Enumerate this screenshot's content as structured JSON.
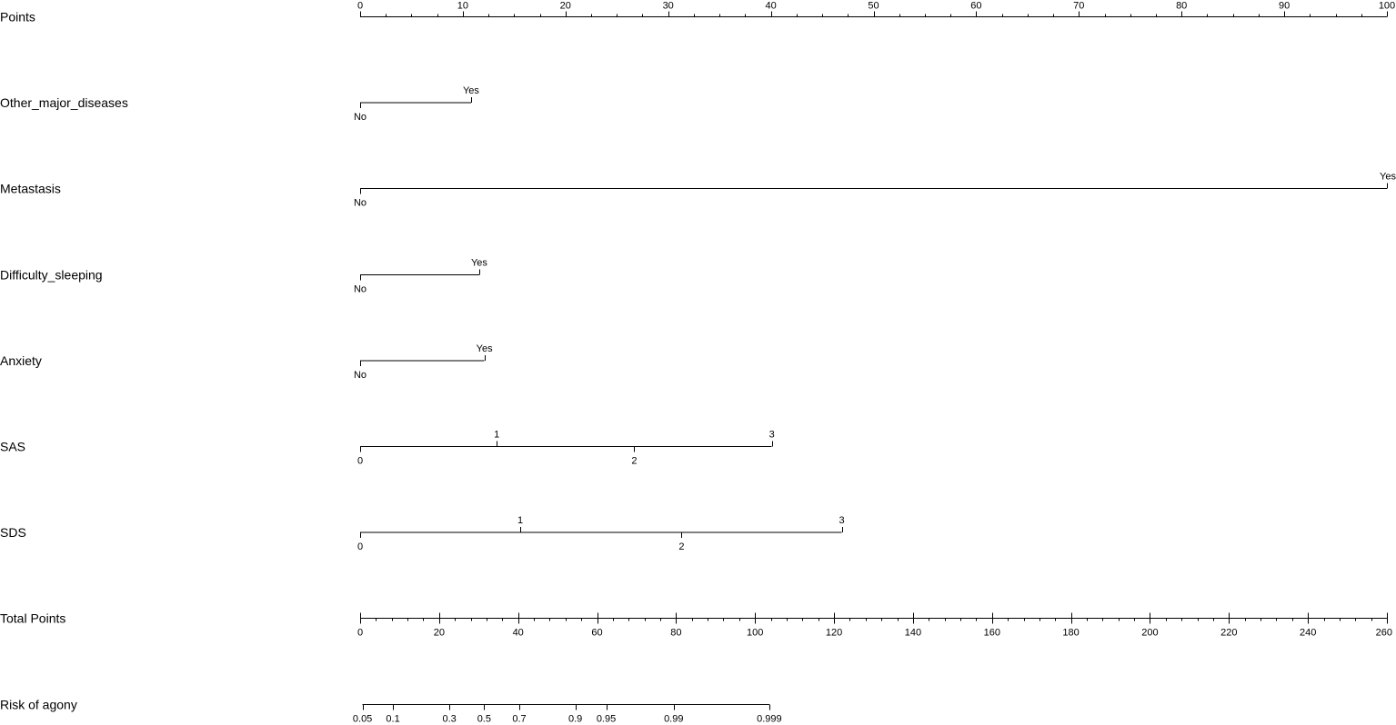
{
  "chart_data": {
    "type": "nomogram",
    "points_scale": {
      "label": "Points",
      "min": 0,
      "max": 100,
      "major_ticks": [
        0,
        10,
        20,
        30,
        40,
        50,
        60,
        70,
        80,
        90,
        100
      ],
      "minor_step": 2.5
    },
    "variables": [
      {
        "name": "Other_major_diseases",
        "levels": [
          {
            "label": "No",
            "points": 0,
            "label_pos": "below"
          },
          {
            "label": "Yes",
            "points": 10.8,
            "label_pos": "above"
          }
        ]
      },
      {
        "name": "Metastasis",
        "levels": [
          {
            "label": "No",
            "points": 0,
            "label_pos": "below"
          },
          {
            "label": "Yes",
            "points": 100,
            "label_pos": "above"
          }
        ]
      },
      {
        "name": "Difficulty_sleeping",
        "levels": [
          {
            "label": "No",
            "points": 0,
            "label_pos": "below"
          },
          {
            "label": "Yes",
            "points": 11.6,
            "label_pos": "above"
          }
        ]
      },
      {
        "name": "Anxiety",
        "levels": [
          {
            "label": "No",
            "points": 0,
            "label_pos": "below"
          },
          {
            "label": "Yes",
            "points": 12.1,
            "label_pos": "above"
          }
        ]
      },
      {
        "name": "SAS",
        "levels": [
          {
            "label": "0",
            "points": 0,
            "label_pos": "below"
          },
          {
            "label": "1",
            "points": 13.3,
            "label_pos": "above"
          },
          {
            "label": "2",
            "points": 26.7,
            "label_pos": "below"
          },
          {
            "label": "3",
            "points": 40.1,
            "label_pos": "above"
          }
        ]
      },
      {
        "name": "SDS",
        "levels": [
          {
            "label": "0",
            "points": 0,
            "label_pos": "below"
          },
          {
            "label": "1",
            "points": 15.6,
            "label_pos": "above"
          },
          {
            "label": "2",
            "points": 31.3,
            "label_pos": "below"
          },
          {
            "label": "3",
            "points": 46.9,
            "label_pos": "above"
          }
        ]
      }
    ],
    "total_points_scale": {
      "label": "Total Points",
      "min": 0,
      "max": 260,
      "major_ticks": [
        0,
        20,
        40,
        60,
        80,
        100,
        120,
        140,
        160,
        180,
        200,
        220,
        240,
        260
      ],
      "minor_step": 4
    },
    "risk_scale": {
      "label": "Risk of agony",
      "ticks": [
        {
          "label": "0.05",
          "total_points": 0.6
        },
        {
          "label": "0.1",
          "total_points": 8.3
        },
        {
          "label": "0.3",
          "total_points": 22.6
        },
        {
          "label": "0.5",
          "total_points": 31.4
        },
        {
          "label": "0.7",
          "total_points": 40.3
        },
        {
          "label": "0.9",
          "total_points": 54.5
        },
        {
          "label": "0.95",
          "total_points": 62.3
        },
        {
          "label": "0.99",
          "total_points": 79.4
        },
        {
          "label": "0.999",
          "total_points": 103.6
        }
      ]
    }
  }
}
